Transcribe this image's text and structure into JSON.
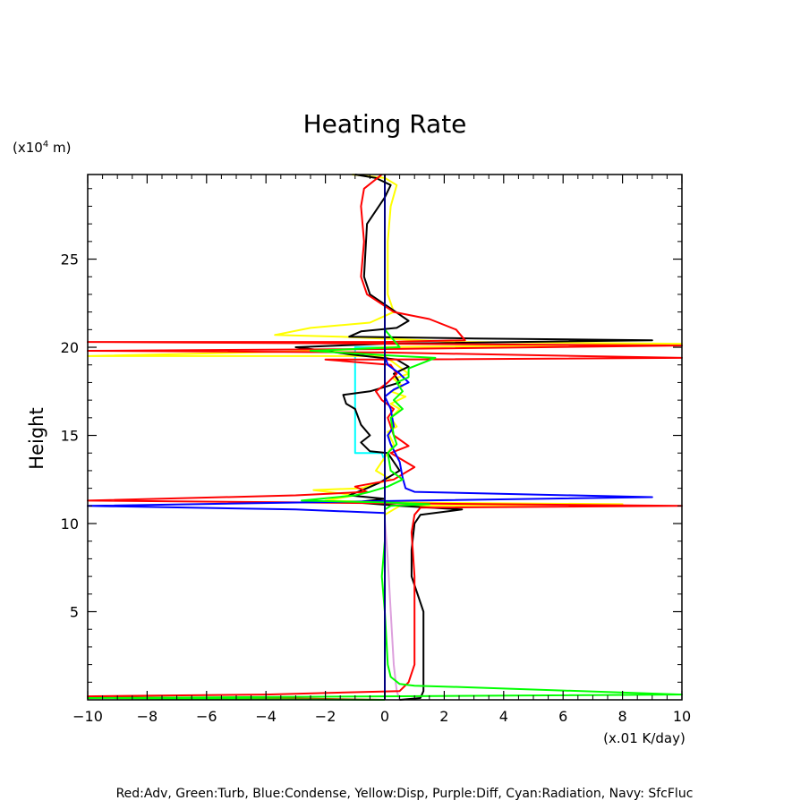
{
  "chart_data": {
    "type": "line",
    "title": "Heating Rate",
    "xlabel": "(x.01 K/day)",
    "ylabel": "Height",
    "yunit_prefix": "(x10",
    "yunit_exp": "4",
    "yunit_suffix": " m)",
    "xlim": [
      -10,
      10
    ],
    "ylim": [
      0,
      29.8
    ],
    "xticks": [
      -10,
      -8,
      -6,
      -4,
      -2,
      0,
      2,
      4,
      6,
      8,
      10
    ],
    "xtick_labels": [
      "−10",
      "−8",
      "−6",
      "−4",
      "−2",
      "0",
      "2",
      "4",
      "6",
      "8",
      "10"
    ],
    "yticks": [
      5,
      10,
      15,
      20,
      25
    ],
    "ytick_labels": [
      "5",
      "10",
      "15",
      "20",
      "25"
    ],
    "grid": false,
    "legend_text": "Red:Adv, Green:Turb, Blue:Condense, Yellow:Disp, Purple:Diff, Cyan:Radiation, Navy: SfcFluc",
    "series": [
      {
        "name": "Cyan:Radiation",
        "color": "#00ffff",
        "points": [
          [
            0,
            29.8
          ],
          [
            0,
            20.0
          ],
          [
            -1,
            20.0
          ],
          [
            -1,
            14.0
          ],
          [
            -0.1,
            14.0
          ],
          [
            0,
            13.5
          ],
          [
            0,
            0
          ]
        ]
      },
      {
        "name": "Purple:Diff",
        "color": "#dda0dd",
        "points": [
          [
            0,
            29.8
          ],
          [
            0,
            10.2
          ],
          [
            0.1,
            8.0
          ],
          [
            0.2,
            5.0
          ],
          [
            0.3,
            2.0
          ],
          [
            0.4,
            0.5
          ],
          [
            0.5,
            0
          ]
        ]
      },
      {
        "name": "Yellow:Disp",
        "color": "#ffff00",
        "points": [
          [
            -1.1,
            29.8
          ],
          [
            0,
            29.6
          ],
          [
            0.4,
            29.2
          ],
          [
            0.2,
            28.0
          ],
          [
            0.1,
            26.0
          ],
          [
            0.1,
            23.0
          ],
          [
            0.3,
            22.0
          ],
          [
            -0.5,
            21.4
          ],
          [
            -2.5,
            21.1
          ],
          [
            -3.7,
            20.7
          ],
          [
            -1.5,
            20.6
          ],
          [
            2.5,
            20.3
          ],
          [
            10,
            20.2
          ],
          [
            0,
            20.0
          ],
          [
            -2,
            19.8
          ],
          [
            -10,
            19.5
          ],
          [
            0,
            19.5
          ],
          [
            0.4,
            19.0
          ],
          [
            0.8,
            18.5
          ],
          [
            0.3,
            18.2
          ],
          [
            0.6,
            17.8
          ],
          [
            0.2,
            17.5
          ],
          [
            0.7,
            17.2
          ],
          [
            0.2,
            16.8
          ],
          [
            0.5,
            16.5
          ],
          [
            0.2,
            16.0
          ],
          [
            0.4,
            15.5
          ],
          [
            0.1,
            15.2
          ],
          [
            0.3,
            14.5
          ],
          [
            0.1,
            14.0
          ],
          [
            -0.3,
            13.0
          ],
          [
            0.2,
            12.5
          ],
          [
            -0.8,
            12.0
          ],
          [
            -2.4,
            11.9
          ],
          [
            -1,
            11.6
          ],
          [
            -2,
            11.3
          ],
          [
            0.2,
            11.2
          ],
          [
            8,
            11.1
          ],
          [
            0.5,
            11.0
          ],
          [
            0,
            10.5
          ],
          [
            0,
            0
          ]
        ]
      },
      {
        "name": "Black",
        "color": "#000000",
        "points": [
          [
            -1,
            29.8
          ],
          [
            -0.3,
            29.6
          ],
          [
            0.2,
            29.2
          ],
          [
            0,
            28.5
          ],
          [
            -0.6,
            27.0
          ],
          [
            -0.7,
            24.0
          ],
          [
            -0.5,
            23.0
          ],
          [
            0.2,
            22.2
          ],
          [
            0.8,
            21.5
          ],
          [
            0.4,
            21.1
          ],
          [
            -0.8,
            20.9
          ],
          [
            -1.2,
            20.6
          ],
          [
            3,
            20.5
          ],
          [
            9,
            20.4
          ],
          [
            0,
            20.2
          ],
          [
            -3,
            20.0
          ],
          [
            -2,
            19.8
          ],
          [
            -1.2,
            19.6
          ],
          [
            0.4,
            19.3
          ],
          [
            0.8,
            18.9
          ],
          [
            0.3,
            18.5
          ],
          [
            0.5,
            18.0
          ],
          [
            -0.5,
            17.5
          ],
          [
            -1.4,
            17.3
          ],
          [
            -1.3,
            16.8
          ],
          [
            -1,
            16.5
          ],
          [
            -0.8,
            15.6
          ],
          [
            -0.5,
            15.0
          ],
          [
            -0.8,
            14.6
          ],
          [
            -0.5,
            14.1
          ],
          [
            0.1,
            14.0
          ],
          [
            0.5,
            13.0
          ],
          [
            0.1,
            12.6
          ],
          [
            -0.2,
            12.3
          ],
          [
            -0.6,
            12.0
          ],
          [
            -1.2,
            11.6
          ],
          [
            0,
            11.4
          ],
          [
            -1,
            11.2
          ],
          [
            0.5,
            11.0
          ],
          [
            2.6,
            10.8
          ],
          [
            1.2,
            10.5
          ],
          [
            1,
            10.0
          ],
          [
            0.9,
            8.5
          ],
          [
            0.9,
            7.0
          ],
          [
            1.3,
            5.0
          ],
          [
            1.3,
            2.0
          ],
          [
            1.3,
            0.5
          ],
          [
            1.2,
            0.1
          ],
          [
            0.5,
            0
          ]
        ]
      },
      {
        "name": "Red:Adv",
        "color": "#ff0000",
        "points": [
          [
            -0.1,
            29.8
          ],
          [
            -0.7,
            29.0
          ],
          [
            -0.8,
            28.0
          ],
          [
            -0.7,
            26.0
          ],
          [
            -0.8,
            24.0
          ],
          [
            -0.6,
            23.0
          ],
          [
            0.3,
            22.0
          ],
          [
            1.5,
            21.6
          ],
          [
            2.4,
            21.0
          ],
          [
            2.7,
            20.4
          ],
          [
            0,
            20.3
          ],
          [
            -10,
            20.3
          ],
          [
            0,
            20.2
          ],
          [
            10,
            20.1
          ],
          [
            0,
            19.9
          ],
          [
            -10,
            19.8
          ],
          [
            0,
            19.7
          ],
          [
            10,
            19.4
          ],
          [
            0,
            19.3
          ],
          [
            -2,
            19.3
          ],
          [
            0.2,
            19.0
          ],
          [
            0.4,
            18.5
          ],
          [
            0.1,
            18.0
          ],
          [
            -0.3,
            17.5
          ],
          [
            -0.1,
            17.0
          ],
          [
            0.3,
            16.5
          ],
          [
            0.1,
            16.0
          ],
          [
            0.3,
            15.0
          ],
          [
            0.8,
            14.4
          ],
          [
            0.2,
            14.0
          ],
          [
            1.0,
            13.2
          ],
          [
            0.3,
            12.5
          ],
          [
            -1.0,
            12.1
          ],
          [
            -0.6,
            11.8
          ],
          [
            -3,
            11.6
          ],
          [
            -10,
            11.3
          ],
          [
            -3,
            11.2
          ],
          [
            10,
            11.0
          ],
          [
            1.2,
            10.9
          ],
          [
            1.0,
            10.5
          ],
          [
            0.9,
            9.5
          ],
          [
            1,
            7.0
          ],
          [
            1,
            5.0
          ],
          [
            1,
            2.0
          ],
          [
            0.8,
            1.0
          ],
          [
            0.5,
            0.5
          ],
          [
            -4,
            0.3
          ],
          [
            -10,
            0.2
          ],
          [
            -4,
            0.1
          ],
          [
            0,
            0
          ]
        ]
      },
      {
        "name": "Blue:Condense",
        "color": "#0000ff",
        "points": [
          [
            0,
            29.8
          ],
          [
            0,
            19.5
          ],
          [
            0.1,
            19.0
          ],
          [
            0.5,
            18.5
          ],
          [
            0.8,
            18.0
          ],
          [
            0.3,
            17.6
          ],
          [
            0,
            17.2
          ],
          [
            0.2,
            16.5
          ],
          [
            0.3,
            15.5
          ],
          [
            0.1,
            15.0
          ],
          [
            0.2,
            14.5
          ],
          [
            0.5,
            13.5
          ],
          [
            0.6,
            12.6
          ],
          [
            0.7,
            12.0
          ],
          [
            1,
            11.8
          ],
          [
            9,
            11.5
          ],
          [
            1,
            11.3
          ],
          [
            -10,
            11.0
          ],
          [
            -3,
            10.8
          ],
          [
            0,
            10.6
          ],
          [
            0,
            0
          ]
        ]
      },
      {
        "name": "Green:Turb",
        "color": "#00ff00",
        "points": [
          [
            0,
            29.8
          ],
          [
            0,
            21.0
          ],
          [
            0.5,
            20.0
          ],
          [
            -2.5,
            19.8
          ],
          [
            0.5,
            19.5
          ],
          [
            1.7,
            19.4
          ],
          [
            0.8,
            18.8
          ],
          [
            0.8,
            18.3
          ],
          [
            0.4,
            18.0
          ],
          [
            0.6,
            17.5
          ],
          [
            0.3,
            17.0
          ],
          [
            0.6,
            16.5
          ],
          [
            0.2,
            16.0
          ],
          [
            0.3,
            15.0
          ],
          [
            0.4,
            14.5
          ],
          [
            0.1,
            14.0
          ],
          [
            0.2,
            13.0
          ],
          [
            0.6,
            12.5
          ],
          [
            0.1,
            12.1
          ],
          [
            -0.5,
            11.8
          ],
          [
            -1,
            11.6
          ],
          [
            -2.8,
            11.3
          ],
          [
            0,
            11.2
          ],
          [
            1.5,
            11.1
          ],
          [
            0.2,
            11.0
          ],
          [
            0,
            10.8
          ],
          [
            0,
            9.0
          ],
          [
            -0.1,
            7.0
          ],
          [
            0,
            5.0
          ],
          [
            0.1,
            2.0
          ],
          [
            0.2,
            1.3
          ],
          [
            0.5,
            0.9
          ],
          [
            1,
            0.8
          ],
          [
            3,
            0.7
          ],
          [
            10,
            0.3
          ],
          [
            0,
            0.2
          ],
          [
            -10,
            0.1
          ],
          [
            0,
            0
          ]
        ]
      },
      {
        "name": "Navy: SfcFluc",
        "color": "#000080",
        "points": [
          [
            0,
            29.8
          ],
          [
            0,
            0
          ]
        ]
      }
    ]
  }
}
